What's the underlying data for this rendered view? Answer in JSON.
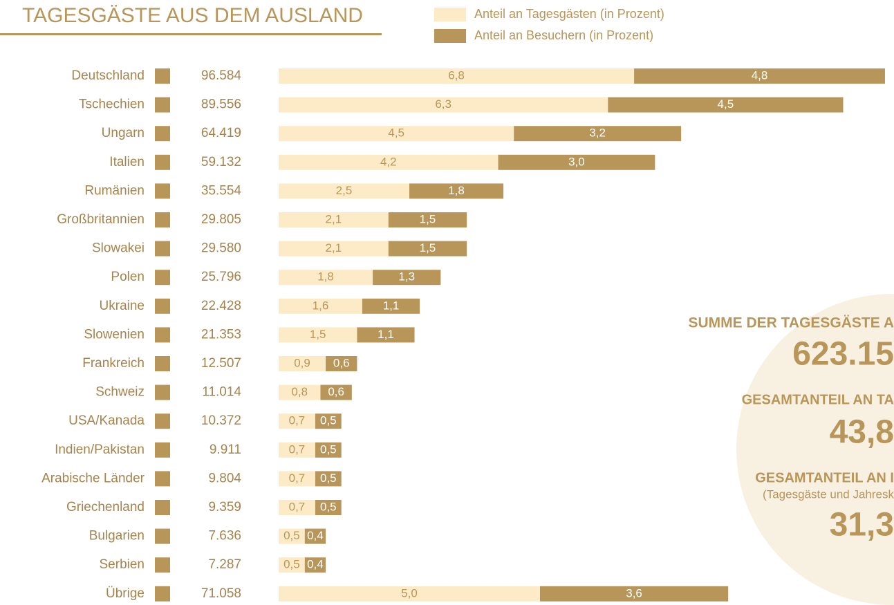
{
  "chart_data": {
    "type": "bar",
    "orientation": "horizontal",
    "stacked": true,
    "title": "TAGESGÄSTE AUS DEM AUSLAND",
    "categories": [
      "Deutschland",
      "Tschechien",
      "Ungarn",
      "Italien",
      "Rumänien",
      "Großbritannien",
      "Slowakei",
      "Polen",
      "Ukraine",
      "Slowenien",
      "Frankreich",
      "Schweiz",
      "USA/Kanada",
      "Indien/Pakistan",
      "Arabische Länder",
      "Griechenland",
      "Bulgarien",
      "Serbien",
      "Übrige"
    ],
    "counts": [
      "96.584",
      "89.556",
      "64.419",
      "59.132",
      "35.554",
      "29.805",
      "29.580",
      "25.796",
      "22.428",
      "21.353",
      "12.507",
      "11.014",
      "10.372",
      "9.911",
      "9.804",
      "9.359",
      "7.636",
      "7.287",
      "71.058"
    ],
    "series": [
      {
        "name": "Anteil an Tagesgästen (in Prozent)",
        "color": "#fdebc8",
        "label_color": "#b8965a",
        "values": [
          6.8,
          6.3,
          4.5,
          4.2,
          2.5,
          2.1,
          2.1,
          1.8,
          1.6,
          1.5,
          0.9,
          0.8,
          0.7,
          0.7,
          0.7,
          0.7,
          0.5,
          0.5,
          5.0
        ],
        "value_labels": [
          "6,8",
          "6,3",
          "4,5",
          "4,2",
          "2,5",
          "2,1",
          "2,1",
          "1,8",
          "1,6",
          "1,5",
          "0,9",
          "0,8",
          "0,7",
          "0,7",
          "0,7",
          "0,7",
          "0,5",
          "0,5",
          "5,0"
        ]
      },
      {
        "name": "Anteil an Besuchern (in Prozent)",
        "color": "#b8965a",
        "label_color": "#ffffff",
        "values": [
          4.8,
          4.5,
          3.2,
          3.0,
          1.8,
          1.5,
          1.5,
          1.3,
          1.1,
          1.1,
          0.6,
          0.6,
          0.5,
          0.5,
          0.5,
          0.5,
          0.4,
          0.4,
          3.6
        ],
        "value_labels": [
          "4,8",
          "4,5",
          "3,2",
          "3,0",
          "1,8",
          "1,5",
          "1,5",
          "1,3",
          "1,1",
          "1,1",
          "0,6",
          "0,6",
          "0,5",
          "0,5",
          "0,5",
          "0,5",
          "0,4",
          "0,4",
          "3,6"
        ]
      }
    ],
    "annotations": [
      "SUMME DER TAGESGÄSTE A",
      "623.15",
      "GESAMTANTEIL AN TA",
      "43,8",
      "GESAMTANTEIL AN I",
      "(Tagesgäste und Jahresk",
      "31,3"
    ]
  }
}
